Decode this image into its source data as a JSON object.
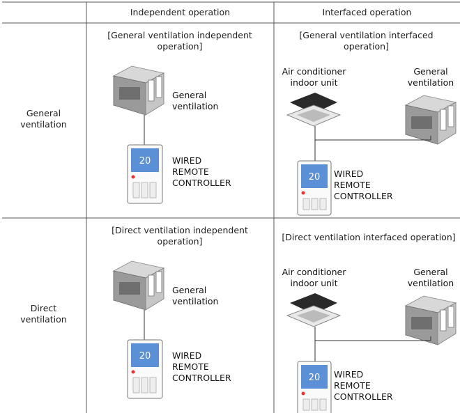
{
  "table": {
    "header": [
      "Independent operation",
      "Interfaced operation"
    ],
    "rows": [
      {
        "label": "General ventilation",
        "independent": {
          "caption": "[General ventilation independent operation]",
          "unit": "General ventilation",
          "controller": "WIRED REMOTE CONTROLLER",
          "display": "20"
        },
        "interfaced": {
          "caption": "[General ventilation interfaced operation]",
          "indoor_unit": "Air conditioner indoor unit",
          "unit": "General ventilation",
          "controller": "WIRED REMOTE CONTROLLER",
          "display": "20"
        }
      },
      {
        "label": "Direct ventilation",
        "independent": {
          "caption": "[Direct ventilation independent operation]",
          "unit": "General ventilation",
          "controller": "WIRED REMOTE CONTROLLER",
          "display": "20"
        },
        "interfaced": {
          "caption": "[Direct ventilation interfaced operation]",
          "indoor_unit": "Air conditioner indoor unit",
          "unit": "General ventilation",
          "controller": "WIRED REMOTE CONTROLLER",
          "display": "20"
        }
      }
    ]
  }
}
